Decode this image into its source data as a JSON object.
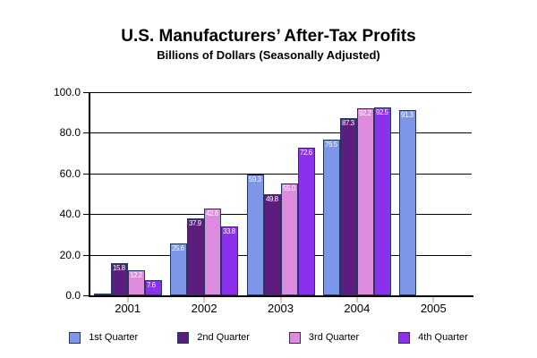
{
  "chart_data": {
    "type": "bar",
    "title": "U.S. Manufacturers’ After-Tax Profits",
    "subtitle": "Billions of Dollars (Seasonally Adjusted)",
    "categories": [
      "2001",
      "2002",
      "2003",
      "2004",
      "2005"
    ],
    "series": [
      {
        "name": "1st Quarter",
        "color": "#7D96E8",
        "values": [
          0.8,
          25.6,
          59.3,
          76.5,
          91.3
        ],
        "labels": [
          "",
          "25.6",
          "59.3",
          "76.5",
          "91.3"
        ]
      },
      {
        "name": "2nd Quarter",
        "color": "#5C1D7C",
        "values": [
          15.8,
          37.9,
          49.8,
          87.3,
          null
        ],
        "labels": [
          "15.8",
          "37.9",
          "49.8",
          "87.3",
          ""
        ]
      },
      {
        "name": "3rd Quarter",
        "color": "#DD8CDD",
        "values": [
          12.2,
          42.6,
          55.0,
          92.2,
          null
        ],
        "labels": [
          "12.2",
          "42.6",
          "55.0",
          "92.2",
          ""
        ]
      },
      {
        "name": "4th Quarter",
        "color": "#8B30EB",
        "values": [
          7.6,
          33.8,
          72.6,
          92.5,
          null
        ],
        "labels": [
          "7.6",
          "33.8",
          "72.6",
          "92.5",
          ""
        ]
      }
    ],
    "ylim": [
      0,
      100
    ],
    "ytick_labels": [
      "100.0",
      "80.0",
      "60.0",
      "40.0",
      "20.0",
      "0.0"
    ],
    "grid": true,
    "legend_position": "bottom",
    "bar_border_color": "#1F3864",
    "axis_color": "#000000",
    "category_tick_color": "#F2C5A2",
    "value_label_color": "#FFFFFF"
  }
}
